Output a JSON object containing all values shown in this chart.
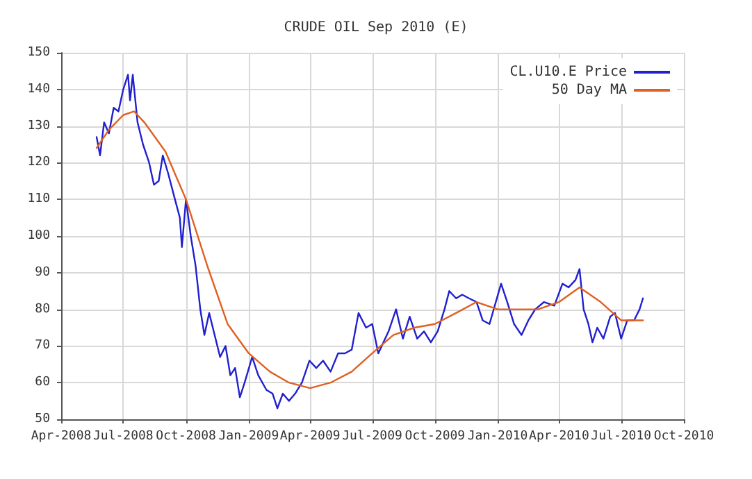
{
  "chart_data": {
    "type": "line",
    "title": "CRUDE OIL Sep 2010 (E)",
    "xlim": [
      "2008-04-01",
      "2010-10-01"
    ],
    "xticks": [
      {
        "value": "2008-04-01",
        "label": "Apr-2008"
      },
      {
        "value": "2008-07-01",
        "label": "Jul-2008"
      },
      {
        "value": "2008-10-01",
        "label": "Oct-2008"
      },
      {
        "value": "2009-01-01",
        "label": "Jan-2009"
      },
      {
        "value": "2009-04-01",
        "label": "Apr-2009"
      },
      {
        "value": "2009-07-01",
        "label": "Jul-2009"
      },
      {
        "value": "2009-10-01",
        "label": "Oct-2009"
      },
      {
        "value": "2010-01-01",
        "label": "Jan-2010"
      },
      {
        "value": "2010-04-01",
        "label": "Apr-2010"
      },
      {
        "value": "2010-07-01",
        "label": "Jul-2010"
      },
      {
        "value": "2010-10-01",
        "label": "Oct-2010"
      }
    ],
    "ylim": [
      50,
      150
    ],
    "yticks": [
      50,
      60,
      70,
      80,
      90,
      100,
      110,
      120,
      130,
      140,
      150
    ],
    "grid": true,
    "legend": "top right",
    "marker": "none",
    "line_style": "solid",
    "series": [
      {
        "name": "CL.U10.E Price",
        "color": "#2020d0",
        "x": [
          "2008-05-23",
          "2008-05-28",
          "2008-06-03",
          "2008-06-10",
          "2008-06-17",
          "2008-06-24",
          "2008-07-01",
          "2008-07-08",
          "2008-07-11",
          "2008-07-15",
          "2008-07-22",
          "2008-07-30",
          "2008-08-08",
          "2008-08-15",
          "2008-08-22",
          "2008-08-28",
          "2008-09-05",
          "2008-09-12",
          "2008-09-22",
          "2008-09-25",
          "2008-10-01",
          "2008-10-08",
          "2008-10-15",
          "2008-10-22",
          "2008-10-28",
          "2008-11-04",
          "2008-11-12",
          "2008-11-20",
          "2008-11-28",
          "2008-12-05",
          "2008-12-12",
          "2008-12-19",
          "2008-12-26",
          "2009-01-06",
          "2009-01-15",
          "2009-01-27",
          "2009-02-05",
          "2009-02-12",
          "2009-02-20",
          "2009-03-01",
          "2009-03-10",
          "2009-03-20",
          "2009-03-31",
          "2009-04-10",
          "2009-04-20",
          "2009-05-01",
          "2009-05-12",
          "2009-05-22",
          "2009-06-01",
          "2009-06-11",
          "2009-06-22",
          "2009-07-01",
          "2009-07-10",
          "2009-07-25",
          "2009-08-05",
          "2009-08-15",
          "2009-08-25",
          "2009-09-05",
          "2009-09-15",
          "2009-09-25",
          "2009-10-05",
          "2009-10-15",
          "2009-10-22",
          "2009-11-01",
          "2009-11-10",
          "2009-11-20",
          "2009-12-01",
          "2009-12-10",
          "2009-12-20",
          "2010-01-06",
          "2010-01-15",
          "2010-01-25",
          "2010-02-05",
          "2010-02-15",
          "2010-02-25",
          "2010-03-10",
          "2010-03-25",
          "2010-04-06",
          "2010-04-15",
          "2010-04-25",
          "2010-05-01",
          "2010-05-07",
          "2010-05-14",
          "2010-05-20",
          "2010-05-27",
          "2010-06-05",
          "2010-06-15",
          "2010-06-22",
          "2010-07-01",
          "2010-07-10",
          "2010-07-20",
          "2010-07-28",
          "2010-08-02"
        ],
        "values": [
          127,
          122,
          131,
          128,
          135,
          134,
          140,
          144,
          137,
          144,
          131,
          125,
          120,
          114,
          115,
          122,
          117,
          112,
          105,
          97,
          110,
          100,
          92,
          80,
          73,
          79,
          73,
          67,
          70,
          62,
          64,
          56,
          60,
          67,
          62,
          58,
          57,
          53,
          57,
          55,
          57,
          60,
          66,
          64,
          66,
          63,
          68,
          68,
          69,
          79,
          75,
          76,
          68,
          74,
          80,
          72,
          78,
          72,
          74,
          71,
          74,
          80,
          85,
          83,
          84,
          83,
          82,
          77,
          76,
          87,
          82,
          76,
          73,
          77,
          80,
          82,
          81,
          87,
          86,
          88,
          91,
          80,
          76,
          71,
          75,
          72,
          78,
          79,
          72,
          77,
          77,
          80,
          83
        ]
      },
      {
        "name": "50 Day MA",
        "color": "#e06020",
        "x": [
          "2008-05-23",
          "2008-06-10",
          "2008-07-01",
          "2008-07-17",
          "2008-08-01",
          "2008-09-01",
          "2008-10-01",
          "2008-11-01",
          "2008-12-01",
          "2009-01-01",
          "2009-02-01",
          "2009-03-01",
          "2009-04-01",
          "2009-05-01",
          "2009-06-01",
          "2009-07-01",
          "2009-08-01",
          "2009-09-01",
          "2009-10-01",
          "2009-11-01",
          "2009-12-01",
          "2010-01-01",
          "2010-02-01",
          "2010-03-01",
          "2010-04-01",
          "2010-05-01",
          "2010-06-01",
          "2010-07-01",
          "2010-08-02"
        ],
        "values": [
          124,
          129,
          133,
          134,
          131,
          123,
          110,
          92,
          76,
          68,
          63,
          60,
          58.5,
          60,
          63,
          68,
          73,
          75,
          76,
          79,
          82,
          80,
          80,
          80,
          82,
          86,
          82,
          77,
          77
        ]
      }
    ]
  }
}
